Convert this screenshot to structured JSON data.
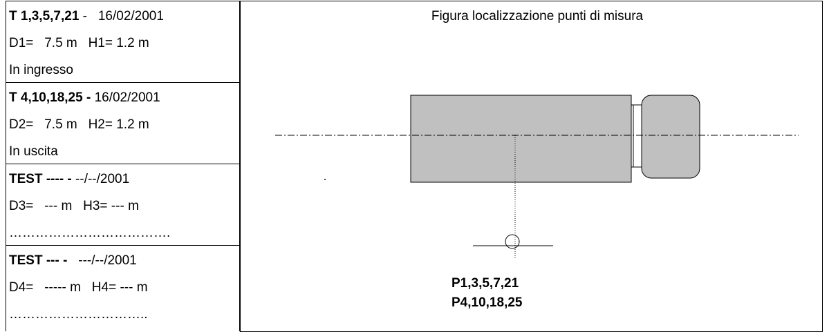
{
  "left_cells": [
    {
      "heading_bold": "T 1,3,5,7,21",
      "heading_rest": " -   16/02/2001",
      "lines": [
        "D1=   7.5 m   H1= 1.2 m",
        "In ingresso"
      ]
    },
    {
      "heading_bold": "T 4,10,18,25 -",
      "heading_rest": " 16/02/2001",
      "lines": [
        "D2=   7.5 m   H2= 1.2 m",
        "In uscita"
      ]
    },
    {
      "heading_bold": "TEST ---- -",
      "heading_rest": " --/--/2001",
      "lines": [
        "D3=   --- m   H3= --- m",
        "………………………………."
      ]
    },
    {
      "heading_bold": "TEST --- -",
      "heading_rest": "   ---/--/2001",
      "lines": [
        "D4=   ----- m   H4= --- m",
        "………………………….."
      ]
    }
  ],
  "figure": {
    "title": "Figura localizzazione punti di misura",
    "labels": [
      "P1,3,5,7,21",
      "P4,10,18,25"
    ]
  }
}
